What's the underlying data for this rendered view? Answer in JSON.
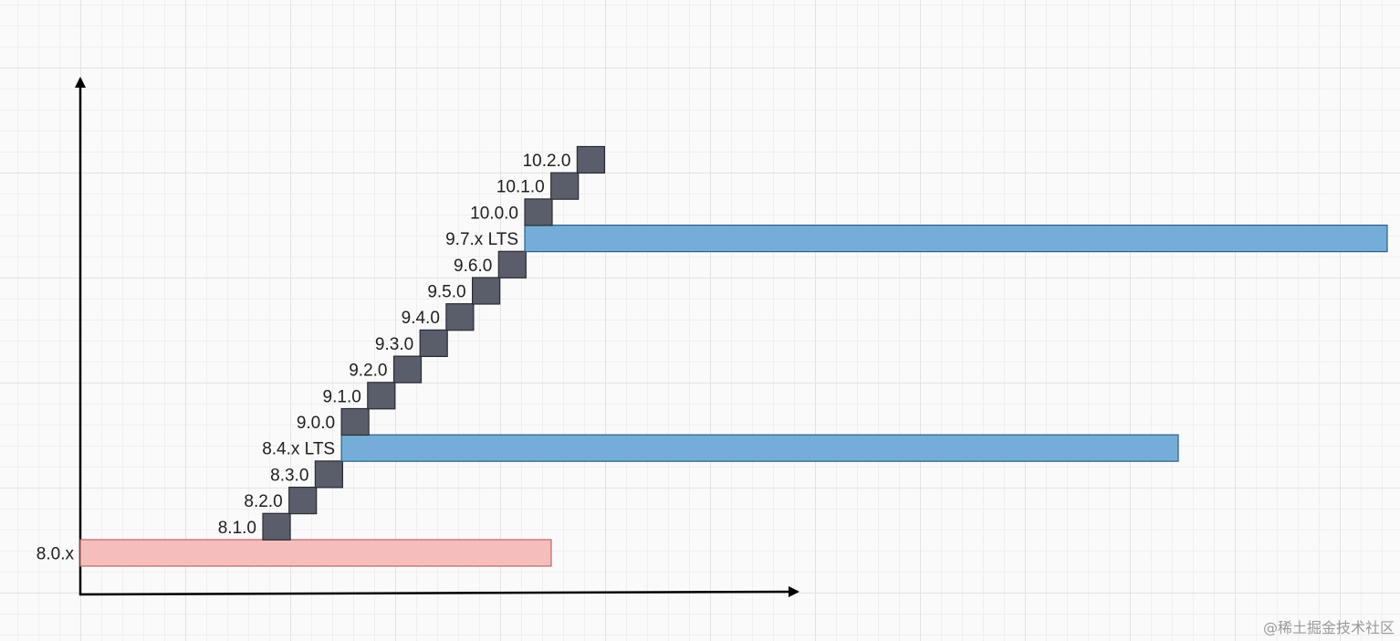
{
  "colors": {
    "stable_fill": "#f6bdbd",
    "stable_stroke": "#b86a6a",
    "lts_fill": "#74aed8",
    "lts_stroke": "#2c5f86",
    "minor_fill": "#5a5d6a",
    "minor_stroke": "#2a2c33",
    "axis": "#000000"
  },
  "releases": [
    {
      "label": "8.0.x",
      "kind": "stable"
    },
    {
      "label": "8.1.0",
      "kind": "minor"
    },
    {
      "label": "8.2.0",
      "kind": "minor"
    },
    {
      "label": "8.3.0",
      "kind": "minor"
    },
    {
      "label": "8.4.x LTS",
      "kind": "lts"
    },
    {
      "label": "9.0.0",
      "kind": "minor"
    },
    {
      "label": "9.1.0",
      "kind": "minor"
    },
    {
      "label": "9.2.0",
      "kind": "minor"
    },
    {
      "label": "9.3.0",
      "kind": "minor"
    },
    {
      "label": "9.4.0",
      "kind": "minor"
    },
    {
      "label": "9.5.0",
      "kind": "minor"
    },
    {
      "label": "9.6.0",
      "kind": "minor"
    },
    {
      "label": "9.7.x LTS",
      "kind": "lts"
    },
    {
      "label": "10.0.0",
      "kind": "minor"
    },
    {
      "label": "10.1.0",
      "kind": "minor"
    },
    {
      "label": "10.2.0",
      "kind": "minor"
    }
  ],
  "watermark": "@稀土掘金技术社区"
}
